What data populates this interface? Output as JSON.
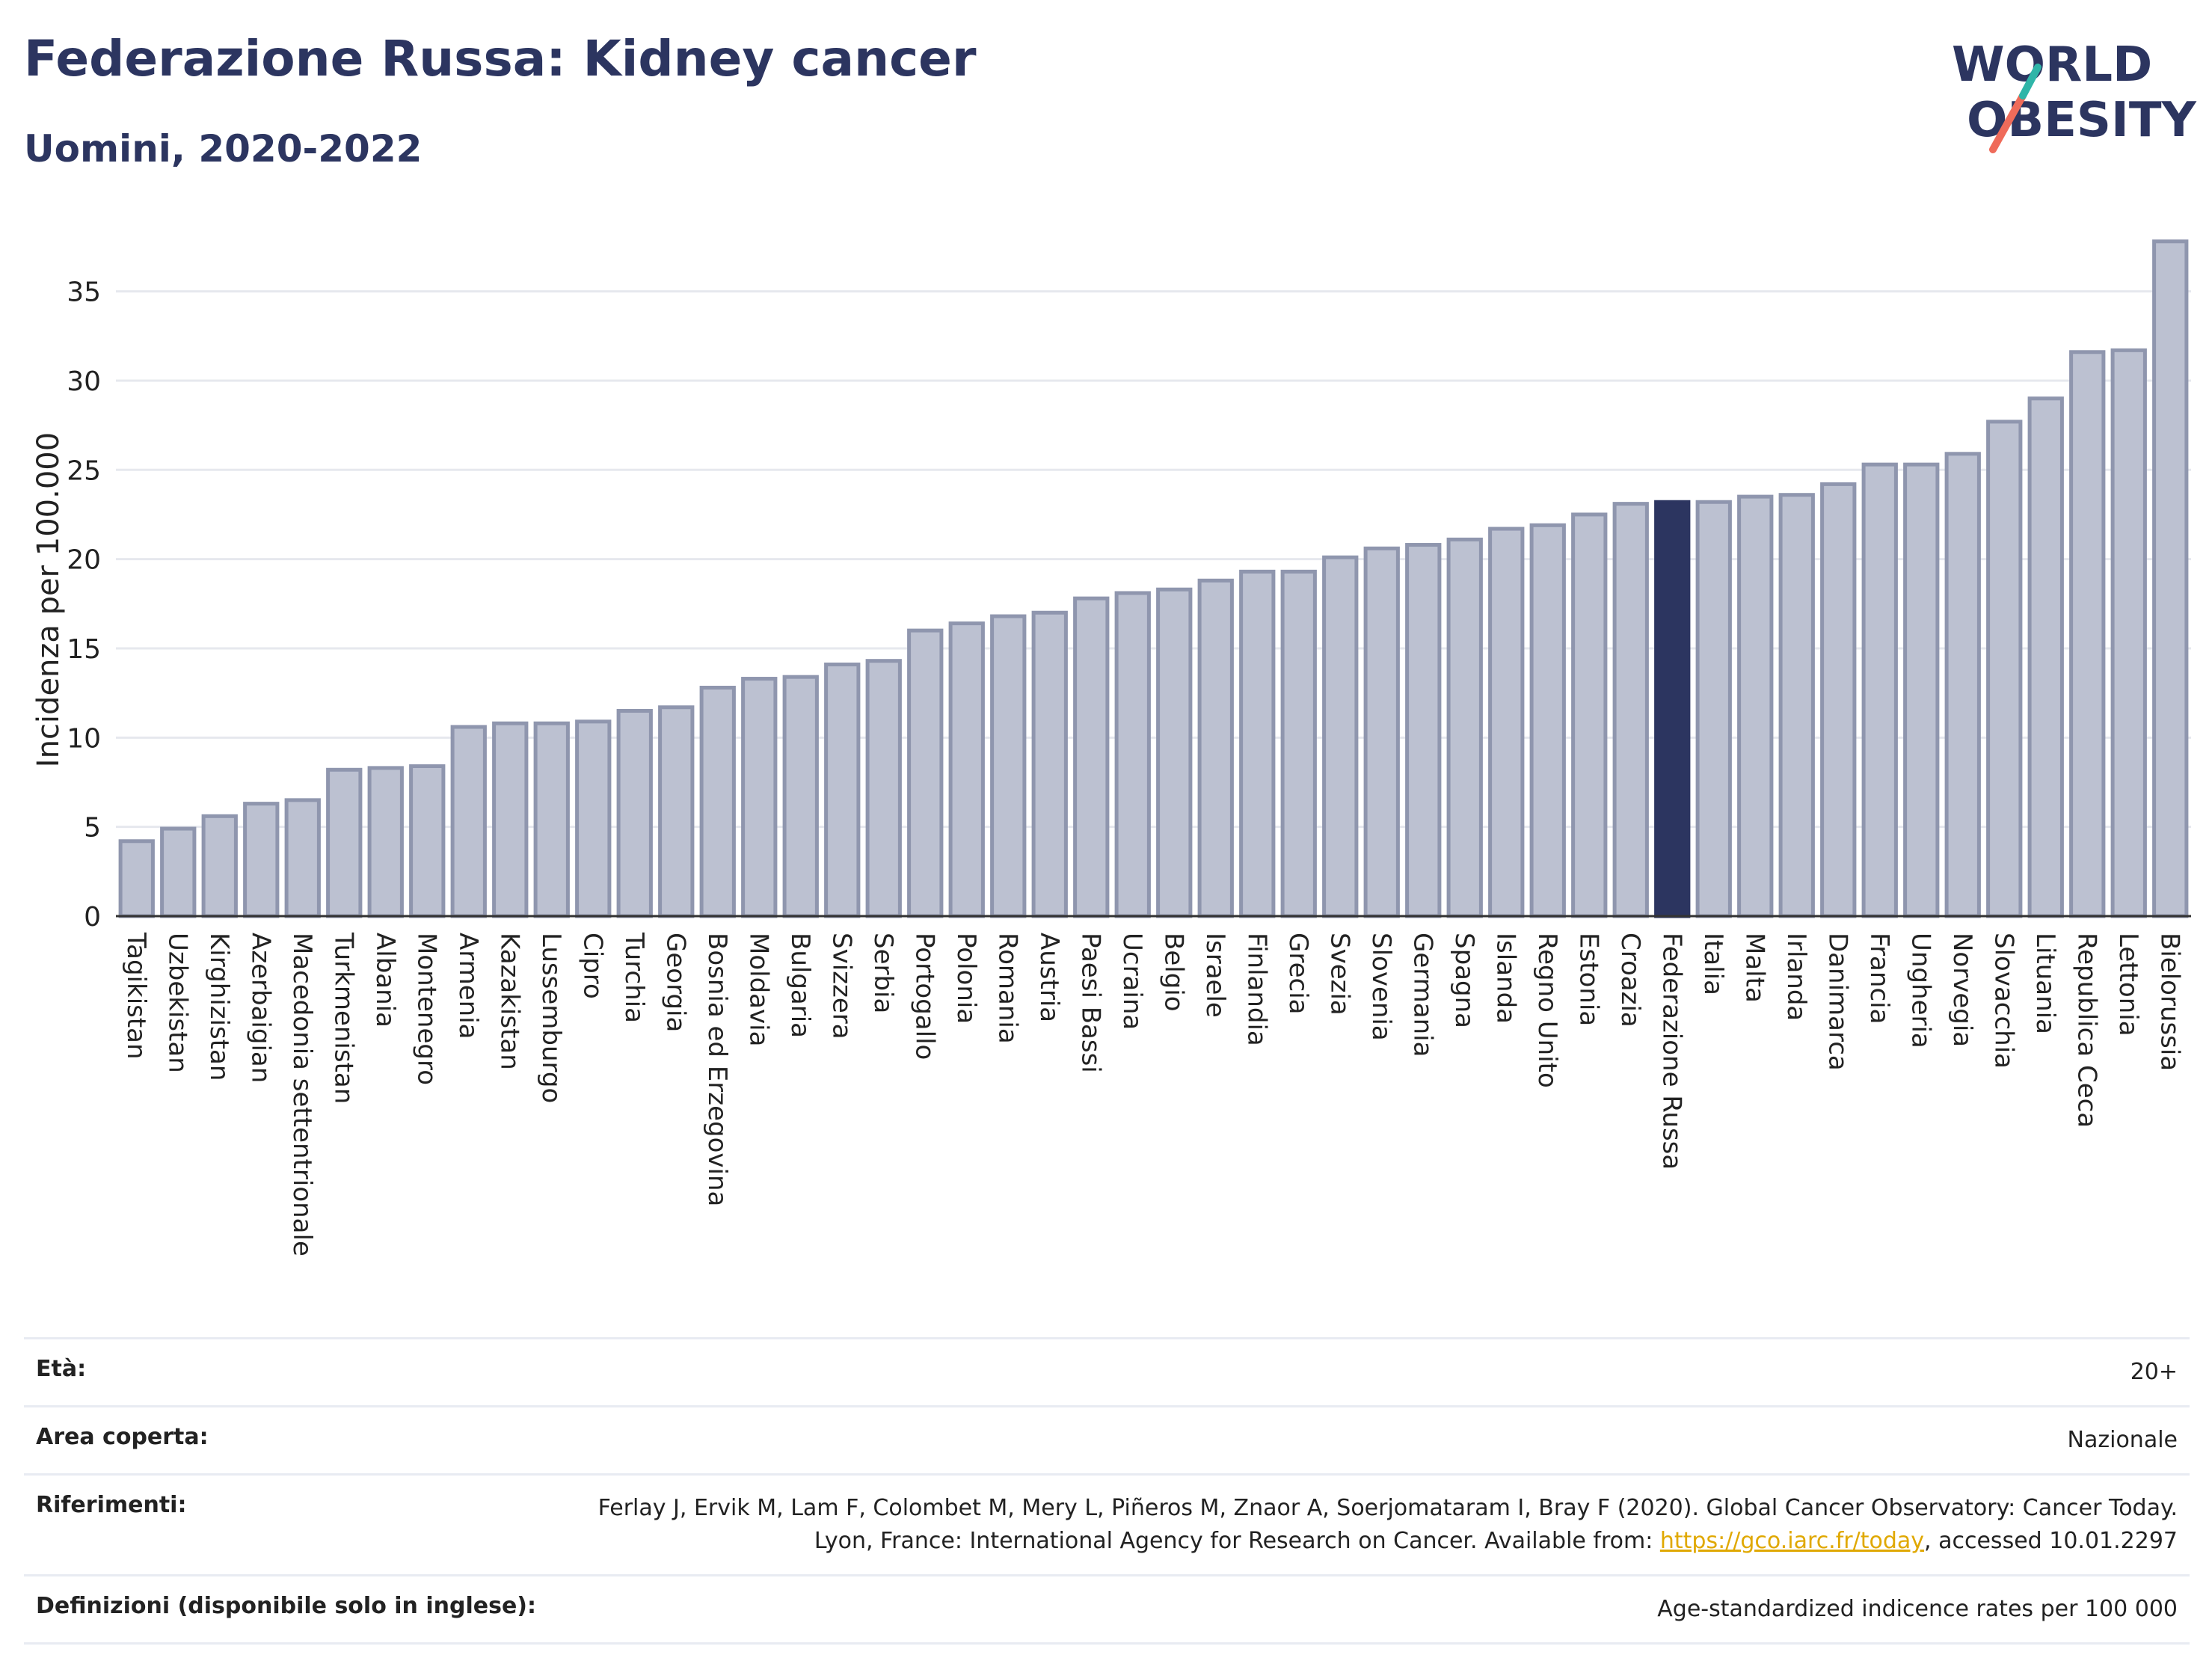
{
  "header": {
    "title": "Federazione Russa: Kidney cancer",
    "subtitle": "Uomini, 2020-2022"
  },
  "logo": {
    "line1": "WORLD",
    "line2": "OBESITY"
  },
  "colors": {
    "bar": "#bcc1d1",
    "bar_stroke": "#8f96ae",
    "highlight": "#2c3560",
    "accent_teal": "#2fb5a8",
    "accent_coral": "#ef6b5a"
  },
  "chart_data": {
    "type": "bar",
    "ylabel": "Incidenza per 100.000",
    "ylim": [
      0,
      38
    ],
    "yticks": [
      0,
      5,
      10,
      15,
      20,
      25,
      30,
      35
    ],
    "grid": true,
    "highlight": "Federazione Russa",
    "categories": [
      "Tagikistan",
      "Uzbekistan",
      "Kirghizistan",
      "Azerbaigian",
      "Macedonia settentrionale",
      "Turkmenistan",
      "Albania",
      "Montenegro",
      "Armenia",
      "Kazakistan",
      "Lussemburgo",
      "Cipro",
      "Turchia",
      "Georgia",
      "Bosnia ed Erzegovina",
      "Moldavia",
      "Bulgaria",
      "Svizzera",
      "Serbia",
      "Portogallo",
      "Polonia",
      "Romania",
      "Austria",
      "Paesi Bassi",
      "Ucraina",
      "Belgio",
      "Israele",
      "Finlandia",
      "Grecia",
      "Svezia",
      "Slovenia",
      "Germania",
      "Spagna",
      "Islanda",
      "Regno Unito",
      "Estonia",
      "Croazia",
      "Federazione Russa",
      "Italia",
      "Malta",
      "Irlanda",
      "Danimarca",
      "Francia",
      "Ungheria",
      "Norvegia",
      "Slovacchia",
      "Lituania",
      "Republica Ceca",
      "Lettonia",
      "Bielorussia"
    ],
    "values": [
      4.2,
      4.9,
      5.6,
      6.3,
      6.5,
      8.2,
      8.3,
      8.4,
      10.6,
      10.8,
      10.8,
      10.9,
      11.5,
      11.7,
      12.8,
      13.3,
      13.4,
      14.1,
      14.3,
      16.0,
      16.4,
      16.8,
      17.0,
      17.8,
      18.1,
      18.3,
      18.8,
      19.3,
      19.3,
      20.1,
      20.6,
      20.8,
      21.1,
      21.7,
      21.9,
      22.5,
      23.1,
      23.2,
      23.2,
      23.5,
      23.6,
      24.2,
      25.3,
      25.3,
      25.9,
      27.7,
      29.0,
      31.6,
      31.7,
      37.8
    ]
  },
  "meta": [
    {
      "key": "Età:",
      "value": "20+"
    },
    {
      "key": "Area coperta:",
      "value": "Nazionale"
    },
    {
      "key": "Riferimenti:",
      "value_pre": "Ferlay J, Ervik M, Lam F, Colombet M, Mery L, Piñeros M, Znaor A, Soerjomataram I, Bray F (2020). Global Cancer Observatory: Cancer Today. Lyon, France: International Agency for Research on Cancer. Available from: ",
      "link": "https://gco.iarc.fr/today",
      "value_post": ", accessed 10.01.2297"
    },
    {
      "key": "Definizioni (disponibile solo in inglese):",
      "value": "Age-standardized indicence rates per 100 000"
    }
  ]
}
